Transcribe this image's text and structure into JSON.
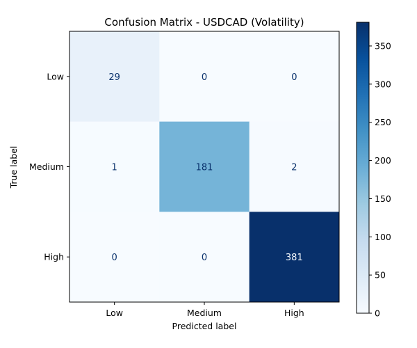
{
  "chart_data": {
    "type": "heatmap",
    "title": "Confusion Matrix - USDCAD (Volatility)",
    "xlabel": "Predicted label",
    "ylabel": "True label",
    "x_categories": [
      "Low",
      "Medium",
      "High"
    ],
    "y_categories": [
      "Low",
      "Medium",
      "High"
    ],
    "values": [
      [
        29,
        0,
        0
      ],
      [
        1,
        181,
        2
      ],
      [
        0,
        0,
        381
      ]
    ],
    "colormap": "Blues",
    "colorbar": {
      "range": [
        0,
        381
      ],
      "ticks": [
        0,
        50,
        100,
        150,
        200,
        250,
        300,
        350
      ]
    },
    "grid": false
  }
}
